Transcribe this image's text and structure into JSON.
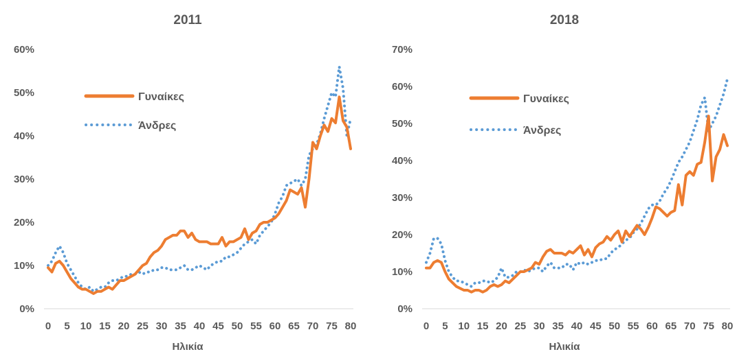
{
  "chart_data": [
    {
      "type": "line",
      "title": "2011",
      "xlabel": "Ηλικία",
      "ylabel": "",
      "xlim": [
        0,
        80
      ],
      "ylim": [
        0,
        0.6
      ],
      "x_ticks": [
        0,
        5,
        10,
        15,
        20,
        25,
        30,
        35,
        40,
        45,
        50,
        55,
        60,
        65,
        70,
        75,
        80
      ],
      "x_tick_labels": [
        "0",
        "5",
        "10",
        "15",
        "20",
        "25",
        "30",
        "35",
        "40",
        "45",
        "50",
        "55",
        "60",
        "65",
        "70",
        "75",
        "80"
      ],
      "y_ticks": [
        0,
        0.1,
        0.2,
        0.3,
        0.4,
        0.5,
        0.6
      ],
      "y_tick_labels": [
        "0%",
        "10%",
        "20%",
        "30%",
        "40%",
        "50%",
        "60%"
      ],
      "legend_position": "upper-left",
      "grid": false,
      "series": [
        {
          "name": "Γυναίκες",
          "color": "#ED7D31",
          "style": "solid",
          "x": [
            0,
            1,
            2,
            3,
            4,
            5,
            6,
            7,
            8,
            9,
            10,
            11,
            12,
            13,
            14,
            15,
            16,
            17,
            18,
            19,
            20,
            21,
            22,
            23,
            24,
            25,
            26,
            27,
            28,
            29,
            30,
            31,
            32,
            33,
            34,
            35,
            36,
            37,
            38,
            39,
            40,
            41,
            42,
            43,
            44,
            45,
            46,
            47,
            48,
            49,
            50,
            51,
            52,
            53,
            54,
            55,
            56,
            57,
            58,
            59,
            60,
            61,
            62,
            63,
            64,
            65,
            66,
            67,
            68,
            69,
            70,
            71,
            72,
            73,
            74,
            75,
            76,
            77,
            78,
            79,
            80
          ],
          "values": [
            0.095,
            0.085,
            0.105,
            0.11,
            0.1,
            0.085,
            0.07,
            0.06,
            0.05,
            0.045,
            0.045,
            0.04,
            0.035,
            0.04,
            0.04,
            0.045,
            0.05,
            0.045,
            0.055,
            0.065,
            0.065,
            0.07,
            0.075,
            0.08,
            0.09,
            0.1,
            0.105,
            0.12,
            0.13,
            0.135,
            0.145,
            0.16,
            0.165,
            0.17,
            0.17,
            0.18,
            0.18,
            0.165,
            0.175,
            0.16,
            0.155,
            0.155,
            0.155,
            0.15,
            0.15,
            0.15,
            0.165,
            0.145,
            0.155,
            0.155,
            0.16,
            0.165,
            0.185,
            0.16,
            0.175,
            0.18,
            0.195,
            0.2,
            0.2,
            0.205,
            0.21,
            0.22,
            0.235,
            0.25,
            0.275,
            0.27,
            0.265,
            0.28,
            0.235,
            0.3,
            0.385,
            0.37,
            0.4,
            0.425,
            0.41,
            0.44,
            0.43,
            0.49,
            0.435,
            0.42,
            0.37
          ]
        },
        {
          "name": "Άνδρες",
          "color": "#5B9BD5",
          "style": "dotted",
          "x": [
            0,
            1,
            2,
            3,
            4,
            5,
            6,
            7,
            8,
            9,
            10,
            11,
            12,
            13,
            14,
            15,
            16,
            17,
            18,
            19,
            20,
            21,
            22,
            23,
            24,
            25,
            26,
            27,
            28,
            29,
            30,
            31,
            32,
            33,
            34,
            35,
            36,
            37,
            38,
            39,
            40,
            41,
            42,
            43,
            44,
            45,
            46,
            47,
            48,
            49,
            50,
            51,
            52,
            53,
            54,
            55,
            56,
            57,
            58,
            59,
            60,
            61,
            62,
            63,
            64,
            65,
            66,
            67,
            68,
            69,
            70,
            71,
            72,
            73,
            74,
            75,
            76,
            77,
            78,
            79,
            80
          ],
          "values": [
            0.1,
            0.11,
            0.13,
            0.145,
            0.13,
            0.105,
            0.09,
            0.075,
            0.06,
            0.05,
            0.045,
            0.05,
            0.04,
            0.045,
            0.05,
            0.05,
            0.06,
            0.065,
            0.065,
            0.07,
            0.075,
            0.075,
            0.08,
            0.08,
            0.085,
            0.08,
            0.085,
            0.085,
            0.09,
            0.09,
            0.095,
            0.095,
            0.09,
            0.09,
            0.09,
            0.095,
            0.1,
            0.09,
            0.09,
            0.095,
            0.1,
            0.095,
            0.09,
            0.1,
            0.105,
            0.11,
            0.11,
            0.12,
            0.12,
            0.125,
            0.13,
            0.14,
            0.15,
            0.155,
            0.16,
            0.15,
            0.17,
            0.18,
            0.19,
            0.2,
            0.22,
            0.245,
            0.26,
            0.285,
            0.29,
            0.295,
            0.3,
            0.285,
            0.3,
            0.355,
            0.37,
            0.38,
            0.405,
            0.44,
            0.47,
            0.5,
            0.49,
            0.56,
            0.51,
            0.4,
            0.44
          ]
        }
      ]
    },
    {
      "type": "line",
      "title": "2018",
      "xlabel": "Ηλικία",
      "ylabel": "",
      "xlim": [
        0,
        80
      ],
      "ylim": [
        0,
        0.7
      ],
      "x_ticks": [
        0,
        5,
        10,
        15,
        20,
        25,
        30,
        35,
        40,
        45,
        50,
        55,
        60,
        65,
        70,
        75,
        80
      ],
      "x_tick_labels": [
        "0",
        "5",
        "10",
        "15",
        "20",
        "25",
        "30",
        "35",
        "40",
        "45",
        "50",
        "55",
        "60",
        "65",
        "70",
        "75",
        "80"
      ],
      "y_ticks": [
        0,
        0.1,
        0.2,
        0.3,
        0.4,
        0.5,
        0.6,
        0.7
      ],
      "y_tick_labels": [
        "0%",
        "10%",
        "20%",
        "30%",
        "40%",
        "50%",
        "60%",
        "70%"
      ],
      "legend_position": "upper-left",
      "grid": false,
      "series": [
        {
          "name": "Γυναίκες",
          "color": "#ED7D31",
          "style": "solid",
          "x": [
            0,
            1,
            2,
            3,
            4,
            5,
            6,
            7,
            8,
            9,
            10,
            11,
            12,
            13,
            14,
            15,
            16,
            17,
            18,
            19,
            20,
            21,
            22,
            23,
            24,
            25,
            26,
            27,
            28,
            29,
            30,
            31,
            32,
            33,
            34,
            35,
            36,
            37,
            38,
            39,
            40,
            41,
            42,
            43,
            44,
            45,
            46,
            47,
            48,
            49,
            50,
            51,
            52,
            53,
            54,
            55,
            56,
            57,
            58,
            59,
            60,
            61,
            62,
            63,
            64,
            65,
            66,
            67,
            68,
            69,
            70,
            71,
            72,
            73,
            74,
            75,
            76,
            77,
            78,
            79,
            80
          ],
          "values": [
            0.11,
            0.11,
            0.125,
            0.13,
            0.125,
            0.1,
            0.08,
            0.07,
            0.06,
            0.055,
            0.05,
            0.05,
            0.045,
            0.05,
            0.05,
            0.045,
            0.05,
            0.06,
            0.065,
            0.06,
            0.065,
            0.075,
            0.07,
            0.08,
            0.09,
            0.1,
            0.1,
            0.105,
            0.11,
            0.125,
            0.12,
            0.14,
            0.155,
            0.16,
            0.15,
            0.15,
            0.15,
            0.145,
            0.155,
            0.15,
            0.16,
            0.17,
            0.145,
            0.16,
            0.14,
            0.165,
            0.175,
            0.18,
            0.195,
            0.185,
            0.2,
            0.21,
            0.18,
            0.21,
            0.195,
            0.21,
            0.225,
            0.215,
            0.2,
            0.22,
            0.245,
            0.275,
            0.27,
            0.26,
            0.25,
            0.26,
            0.265,
            0.335,
            0.28,
            0.36,
            0.37,
            0.36,
            0.39,
            0.395,
            0.45,
            0.52,
            0.345,
            0.41,
            0.43,
            0.47,
            0.44
          ]
        },
        {
          "name": "Άνδρες",
          "color": "#5B9BD5",
          "style": "dotted",
          "x": [
            0,
            1,
            2,
            3,
            4,
            5,
            6,
            7,
            8,
            9,
            10,
            11,
            12,
            13,
            14,
            15,
            16,
            17,
            18,
            19,
            20,
            21,
            22,
            23,
            24,
            25,
            26,
            27,
            28,
            29,
            30,
            31,
            32,
            33,
            34,
            35,
            36,
            37,
            38,
            39,
            40,
            41,
            42,
            43,
            44,
            45,
            46,
            47,
            48,
            49,
            50,
            51,
            52,
            53,
            54,
            55,
            56,
            57,
            58,
            59,
            60,
            61,
            62,
            63,
            64,
            65,
            66,
            67,
            68,
            69,
            70,
            71,
            72,
            73,
            74,
            75,
            76,
            77,
            78,
            79,
            80
          ],
          "values": [
            0.125,
            0.15,
            0.19,
            0.19,
            0.175,
            0.13,
            0.1,
            0.085,
            0.075,
            0.075,
            0.07,
            0.065,
            0.06,
            0.07,
            0.07,
            0.075,
            0.075,
            0.07,
            0.075,
            0.085,
            0.11,
            0.085,
            0.085,
            0.09,
            0.1,
            0.1,
            0.105,
            0.1,
            0.105,
            0.11,
            0.11,
            0.1,
            0.115,
            0.125,
            0.11,
            0.11,
            0.11,
            0.12,
            0.12,
            0.105,
            0.125,
            0.12,
            0.125,
            0.12,
            0.125,
            0.13,
            0.13,
            0.135,
            0.135,
            0.15,
            0.16,
            0.165,
            0.175,
            0.185,
            0.19,
            0.205,
            0.215,
            0.23,
            0.25,
            0.27,
            0.28,
            0.28,
            0.29,
            0.31,
            0.325,
            0.345,
            0.37,
            0.395,
            0.41,
            0.43,
            0.45,
            0.48,
            0.51,
            0.55,
            0.57,
            0.48,
            0.5,
            0.52,
            0.55,
            0.58,
            0.62
          ]
        }
      ]
    }
  ]
}
